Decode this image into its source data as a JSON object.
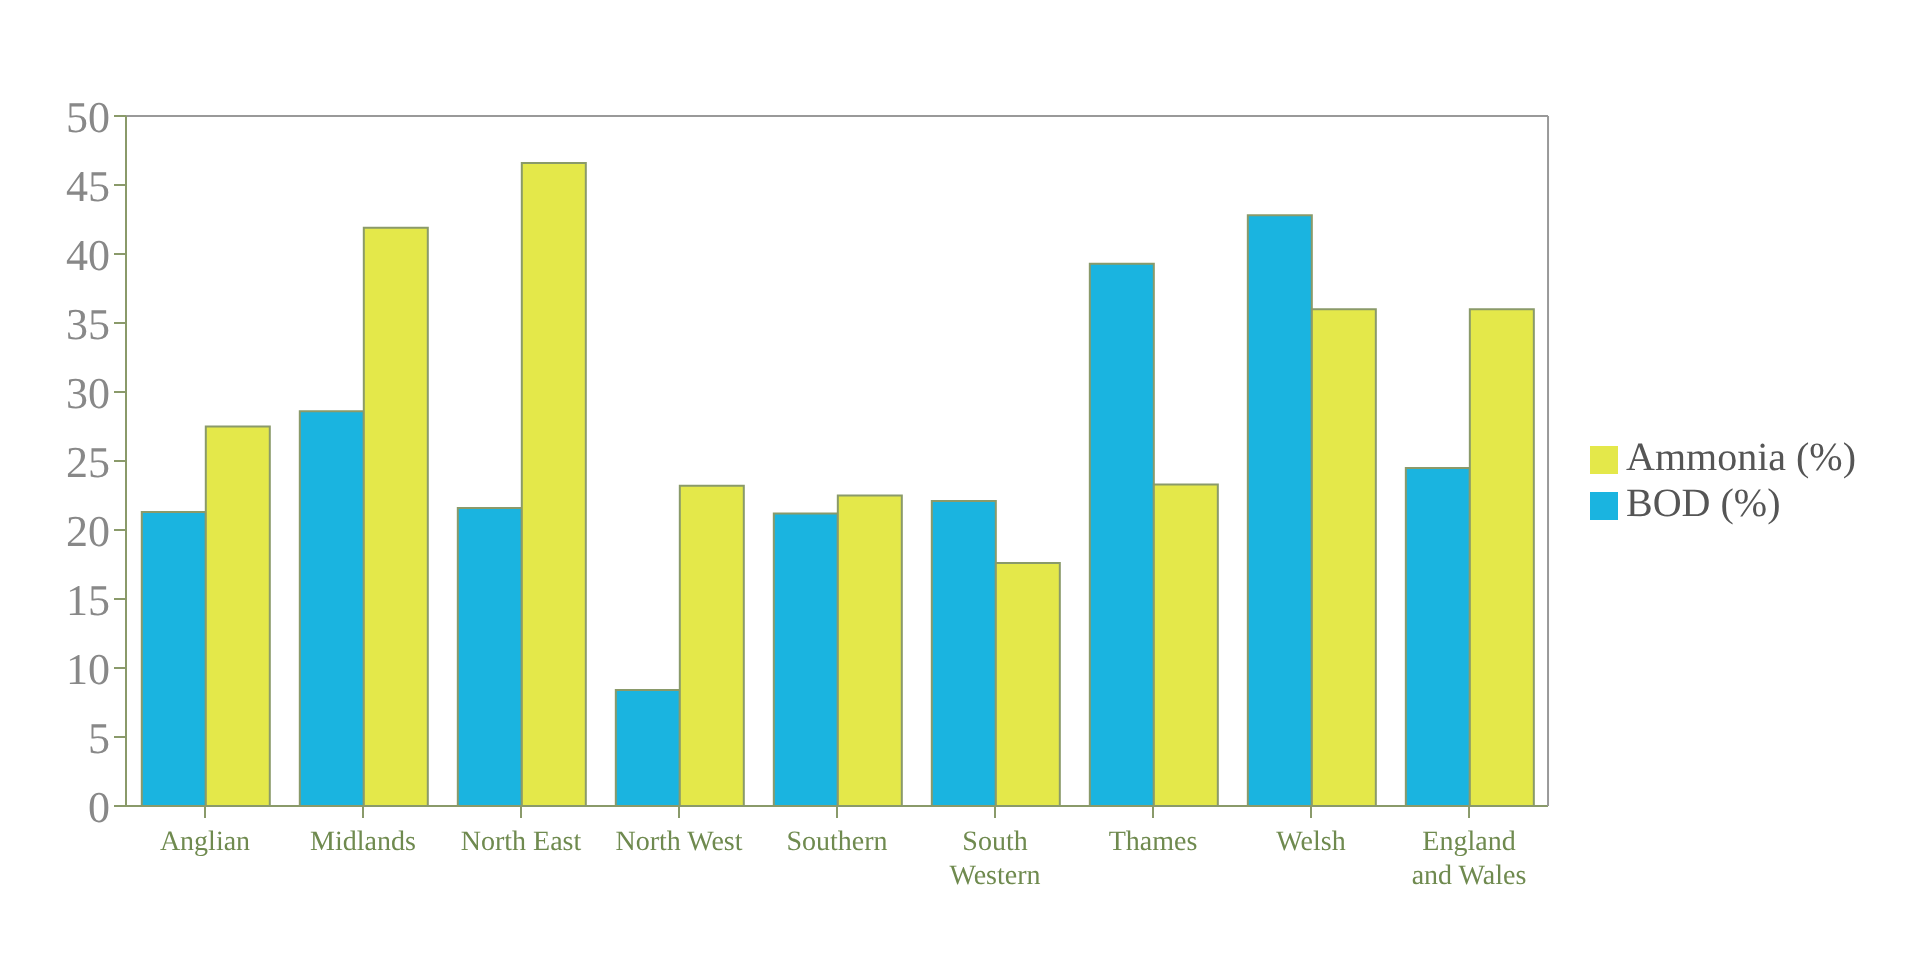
{
  "chart_data": {
    "type": "bar",
    "categories": [
      "Anglian",
      "Midlands",
      "North East",
      "North West",
      "Southern",
      "South Western",
      "Thames",
      "Welsh",
      "England and Wales"
    ],
    "series": [
      {
        "name": "BOD (%)",
        "color": "#1ab4e0",
        "values": [
          21.3,
          28.6,
          21.6,
          8.4,
          21.2,
          22.1,
          39.3,
          42.8,
          24.5
        ]
      },
      {
        "name": "Ammonia (%)",
        "color": "#e4e84a",
        "values": [
          27.5,
          41.9,
          46.6,
          23.2,
          22.5,
          17.6,
          23.3,
          36.0,
          36.0
        ]
      }
    ],
    "ylim": [
      0,
      50
    ],
    "yticks": [
      0,
      5,
      10,
      15,
      20,
      25,
      30,
      35,
      40,
      45,
      50
    ],
    "grid": false,
    "legend": "right"
  }
}
